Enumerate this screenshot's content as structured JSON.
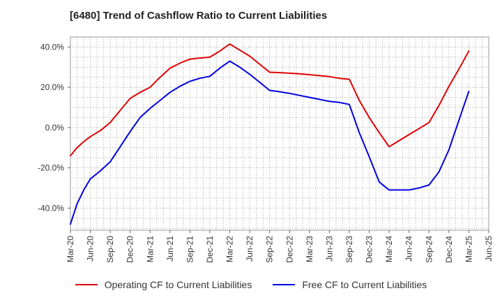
{
  "colors": {
    "operating": "#e00000",
    "free": "#0000e0"
  },
  "chart_data": {
    "type": "line",
    "title": "[6480]  Trend of Cashflow Ratio to Current Liabilities",
    "xlabel": "",
    "ylabel": "",
    "x_tick_labels": [
      "Mar-20",
      "Jun-20",
      "Sep-20",
      "Dec-20",
      "Mar-21",
      "Jun-21",
      "Sep-21",
      "Dec-21",
      "Mar-22",
      "Jun-22",
      "Sep-22",
      "Dec-22",
      "Mar-23",
      "Jun-23",
      "Sep-23",
      "Dec-23",
      "Mar-24",
      "Jun-24",
      "Sep-24",
      "Dec-24",
      "Mar-25",
      "Jun-25"
    ],
    "y_ticks": [
      40,
      20,
      0,
      -20,
      -40
    ],
    "y_tick_labels": [
      "40.0%",
      "20.0%",
      "0.0%",
      "-20.0%",
      "-40.0%"
    ],
    "ylim": [
      -51,
      45
    ],
    "grid": true,
    "legend_position": "bottom",
    "series": [
      {
        "name": "Operating CF to Current Liabilities",
        "color": "#e00000",
        "x": [
          0,
          0.33,
          0.67,
          1,
          1.5,
          2,
          2.5,
          3,
          3.5,
          4,
          4.5,
          5,
          5.5,
          6,
          6.5,
          7,
          7.5,
          8,
          8.5,
          9,
          9.5,
          10,
          10.5,
          11,
          11.5,
          12,
          12.5,
          13,
          13.5,
          14,
          14.5,
          15,
          15.5,
          16,
          16.5,
          17,
          17.5,
          18,
          18.5,
          19,
          19.5,
          20
        ],
        "values": [
          -14,
          -10,
          -7,
          -4.5,
          -1.5,
          2.5,
          8.5,
          14.5,
          17.5,
          20,
          25,
          29.5,
          32,
          34,
          34.5,
          35,
          38,
          41.5,
          38.5,
          35.5,
          31.5,
          27.5,
          27.3,
          27,
          26.7,
          26.3,
          25.8,
          25.3,
          24.5,
          24,
          13.5,
          5,
          -2.5,
          -9.5,
          -6.5,
          -3.5,
          -0.5,
          2.5,
          11,
          20.5,
          29,
          38
        ]
      },
      {
        "name": "Free CF to Current Liabilities",
        "color": "#0000e0",
        "x": [
          0,
          0.33,
          0.67,
          1,
          1.5,
          2,
          2.5,
          3,
          3.5,
          4,
          4.5,
          5,
          5.5,
          6,
          6.5,
          7,
          7.5,
          8,
          8.5,
          9,
          9.5,
          10,
          10.5,
          11,
          11.5,
          12,
          12.5,
          13,
          13.5,
          14,
          14.5,
          15,
          15.5,
          16,
          16.5,
          17,
          17.5,
          18,
          18.5,
          19,
          19.5,
          20
        ],
        "values": [
          -48,
          -38,
          -31,
          -25.5,
          -21.5,
          -17,
          -9.5,
          -2,
          5,
          9.5,
          13.5,
          17.5,
          20.5,
          23,
          24.5,
          25.5,
          29.5,
          33,
          30,
          26.5,
          22.5,
          18.5,
          17.8,
          17,
          16,
          15,
          14,
          13,
          12.5,
          11.5,
          -2.5,
          -14.5,
          -27,
          -31,
          -31,
          -31,
          -30,
          -28.5,
          -22,
          -11,
          3.5,
          18
        ]
      }
    ]
  }
}
